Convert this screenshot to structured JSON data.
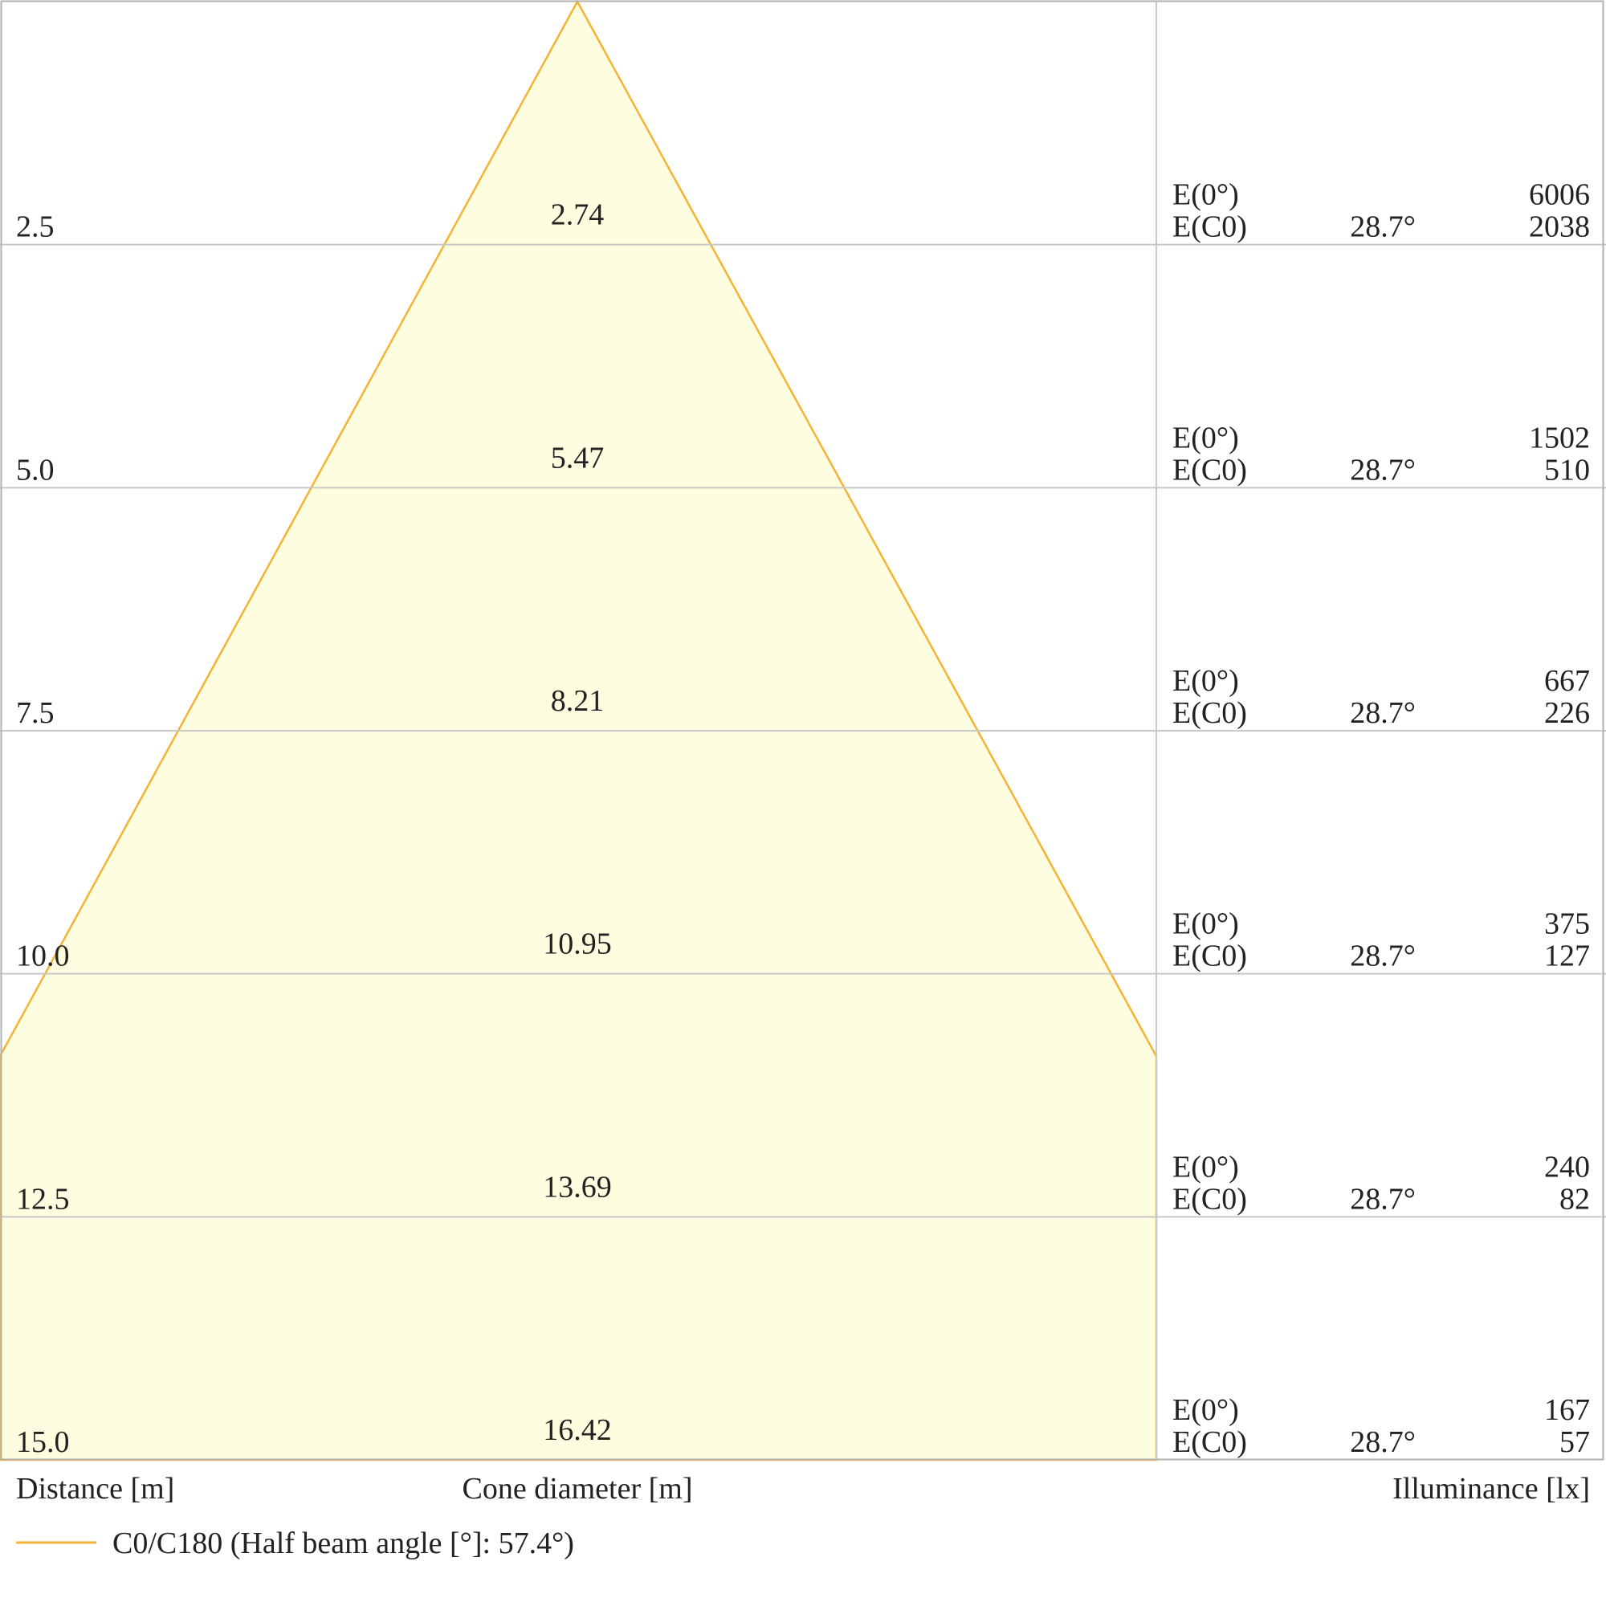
{
  "chart_data": {
    "type": "cone-diagram",
    "xlabel": "Distance [m]",
    "center_label": "Cone diameter [m]",
    "right_label": "Illuminance [lx]",
    "legend": [
      {
        "name": "C0/C180 (Half beam angle [°]: 57.4°)",
        "color": "#f5b335"
      }
    ],
    "half_angle_deg": 28.7,
    "distance_range": [
      0,
      15
    ],
    "fill_color": "#fefde0",
    "line_color": "#f5b335",
    "grid_color": "#c8c8c8",
    "rows": [
      {
        "distance": "2.5",
        "diameter": "2.74",
        "e0_label": "E(0°)",
        "ec0_label": "E(C0)",
        "angle": "28.7°",
        "e0": "6006",
        "ec0": "2038"
      },
      {
        "distance": "5.0",
        "diameter": "5.47",
        "e0_label": "E(0°)",
        "ec0_label": "E(C0)",
        "angle": "28.7°",
        "e0": "1502",
        "ec0": "510"
      },
      {
        "distance": "7.5",
        "diameter": "8.21",
        "e0_label": "E(0°)",
        "ec0_label": "E(C0)",
        "angle": "28.7°",
        "e0": "667",
        "ec0": "226"
      },
      {
        "distance": "10.0",
        "diameter": "10.95",
        "e0_label": "E(0°)",
        "ec0_label": "E(C0)",
        "angle": "28.7°",
        "e0": "375",
        "ec0": "127"
      },
      {
        "distance": "12.5",
        "diameter": "13.69",
        "e0_label": "E(0°)",
        "ec0_label": "E(C0)",
        "angle": "28.7°",
        "e0": "240",
        "ec0": "82"
      },
      {
        "distance": "15.0",
        "diameter": "16.42",
        "e0_label": "E(0°)",
        "ec0_label": "E(C0)",
        "angle": "28.7°",
        "e0": "167",
        "ec0": "57"
      }
    ]
  }
}
